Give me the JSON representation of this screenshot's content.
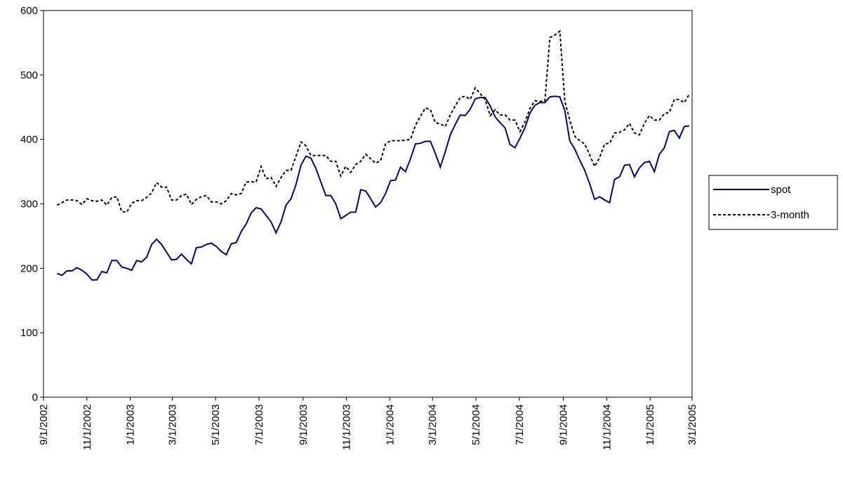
{
  "chart_data": {
    "type": "line",
    "x": [
      "9/20/2002",
      "9/27/2002",
      "10/4/2002",
      "10/11/2002",
      "10/18/2002",
      "10/25/2002",
      "11/1/2002",
      "11/8/2002",
      "11/15/2002",
      "11/22/2002",
      "11/29/2002",
      "12/6/2002",
      "12/13/2002",
      "12/20/2002",
      "12/27/2002",
      "1/3/2003",
      "1/10/2003",
      "1/17/2003",
      "1/24/2003",
      "1/31/2003",
      "2/7/2003",
      "2/14/2003",
      "2/21/2003",
      "2/28/2003",
      "3/7/2003",
      "3/14/2003",
      "3/21/2003",
      "3/28/2003",
      "4/4/2003",
      "4/11/2003",
      "4/18/2003",
      "4/25/2003",
      "5/2/2003",
      "5/9/2003",
      "5/16/2003",
      "5/23/2003",
      "5/30/2003",
      "6/6/2003",
      "6/13/2003",
      "6/20/2003",
      "6/27/2003",
      "7/4/2003",
      "7/11/2003",
      "7/18/2003",
      "7/25/2003",
      "8/1/2003",
      "8/8/2003",
      "8/15/2003",
      "8/22/2003",
      "8/29/2003",
      "9/5/2003",
      "9/12/2003",
      "9/19/2003",
      "9/26/2003",
      "10/3/2003",
      "10/10/2003",
      "10/17/2003",
      "10/24/2003",
      "10/31/2003",
      "11/7/2003",
      "11/14/2003",
      "11/21/2003",
      "11/28/2003",
      "12/5/2003",
      "12/12/2003",
      "12/19/2003",
      "12/26/2003",
      "1/2/2004",
      "1/9/2004",
      "1/16/2004",
      "1/23/2004",
      "1/30/2004",
      "2/6/2004",
      "2/13/2004",
      "2/20/2004",
      "2/27/2004",
      "3/5/2004",
      "3/12/2004",
      "3/19/2004",
      "3/26/2004",
      "4/2/2004",
      "4/9/2004",
      "4/16/2004",
      "4/23/2004",
      "4/30/2004",
      "5/7/2004",
      "5/14/2004",
      "5/21/2004",
      "5/28/2004",
      "6/4/2004",
      "6/11/2004",
      "6/18/2004",
      "6/25/2004",
      "7/2/2004",
      "7/9/2004",
      "7/16/2004",
      "7/23/2004",
      "7/30/2004",
      "8/6/2004",
      "8/13/2004",
      "8/20/2004",
      "8/27/2004",
      "9/3/2004",
      "9/10/2004",
      "9/17/2004",
      "9/24/2004",
      "10/1/2004",
      "10/8/2004",
      "10/15/2004",
      "10/22/2004",
      "10/29/2004",
      "11/5/2004",
      "11/12/2004",
      "11/19/2004",
      "11/26/2004",
      "12/3/2004",
      "12/10/2004",
      "12/17/2004",
      "12/24/2004",
      "12/31/2004",
      "1/7/2005",
      "1/14/2005",
      "1/21/2005",
      "1/28/2005",
      "2/4/2005",
      "2/11/2005",
      "2/18/2005",
      "2/25/2005"
    ],
    "series": [
      {
        "name": "spot",
        "color": "#000080",
        "dash": false,
        "values": [
          192,
          189,
          196,
          196,
          201,
          197,
          191,
          182,
          182,
          195,
          193,
          212,
          212,
          202,
          200,
          197,
          212,
          210,
          217,
          237,
          245,
          237,
          225,
          213,
          214,
          222,
          214,
          207,
          232,
          233,
          237,
          239,
          234,
          226,
          221,
          238,
          240,
          257,
          269,
          286,
          294,
          292,
          282,
          272,
          255,
          272,
          298,
          308,
          330,
          360,
          374,
          371,
          355,
          334,
          313,
          313,
          300,
          277,
          282,
          287,
          287,
          322,
          320,
          308,
          295,
          302,
          316,
          336,
          337,
          357,
          350,
          370,
          393,
          394,
          397,
          397,
          378,
          357,
          381,
          407,
          423,
          438,
          437,
          447,
          463,
          465,
          465,
          452,
          435,
          426,
          418,
          392,
          387,
          402,
          418,
          441,
          453,
          457,
          457,
          466,
          467,
          466,
          445,
          398,
          385,
          368,
          352,
          331,
          307,
          311,
          306,
          302,
          338,
          342,
          360,
          361,
          342,
          356,
          364,
          366,
          350,
          377,
          387,
          412,
          414,
          402,
          420,
          421
        ]
      },
      {
        "name": "3-month",
        "color": "#000000",
        "dash": true,
        "values": [
          298,
          302,
          306,
          306,
          305,
          299,
          308,
          305,
          304,
          306,
          298,
          310,
          311,
          288,
          287,
          301,
          305,
          305,
          310,
          317,
          333,
          326,
          326,
          306,
          306,
          313,
          315,
          299,
          307,
          311,
          313,
          303,
          303,
          300,
          305,
          316,
          314,
          316,
          334,
          334,
          334,
          358,
          339,
          341,
          327,
          341,
          352,
          352,
          374,
          396,
          390,
          375,
          375,
          375,
          375,
          366,
          366,
          343,
          358,
          349,
          361,
          366,
          377,
          370,
          363,
          367,
          393,
          398,
          398,
          398,
          399,
          400,
          422,
          436,
          449,
          446,
          426,
          424,
          420,
          438,
          452,
          465,
          467,
          462,
          480,
          471,
          462,
          437,
          446,
          438,
          438,
          430,
          430,
          412,
          427,
          448,
          460,
          459,
          460,
          558,
          562,
          568,
          460,
          430,
          405,
          398,
          393,
          376,
          358,
          372,
          393,
          394,
          410,
          411,
          415,
          425,
          410,
          407,
          425,
          437,
          430,
          430,
          440,
          442,
          462,
          462,
          457,
          470
        ]
      }
    ],
    "xlim": [
      "9/1/2002",
      "3/1/2005"
    ],
    "xticks": [
      "9/1/2002",
      "11/1/2002",
      "1/1/2003",
      "3/1/2003",
      "5/1/2003",
      "7/1/2003",
      "9/1/2003",
      "11/1/2003",
      "1/1/2004",
      "3/1/2004",
      "5/1/2004",
      "7/1/2004",
      "9/1/2004",
      "11/1/2004",
      "1/1/2005",
      "3/1/2005"
    ],
    "ylim": [
      0,
      600
    ],
    "yticks": [
      0,
      100,
      200,
      300,
      400,
      500,
      600
    ],
    "legend": "right"
  }
}
